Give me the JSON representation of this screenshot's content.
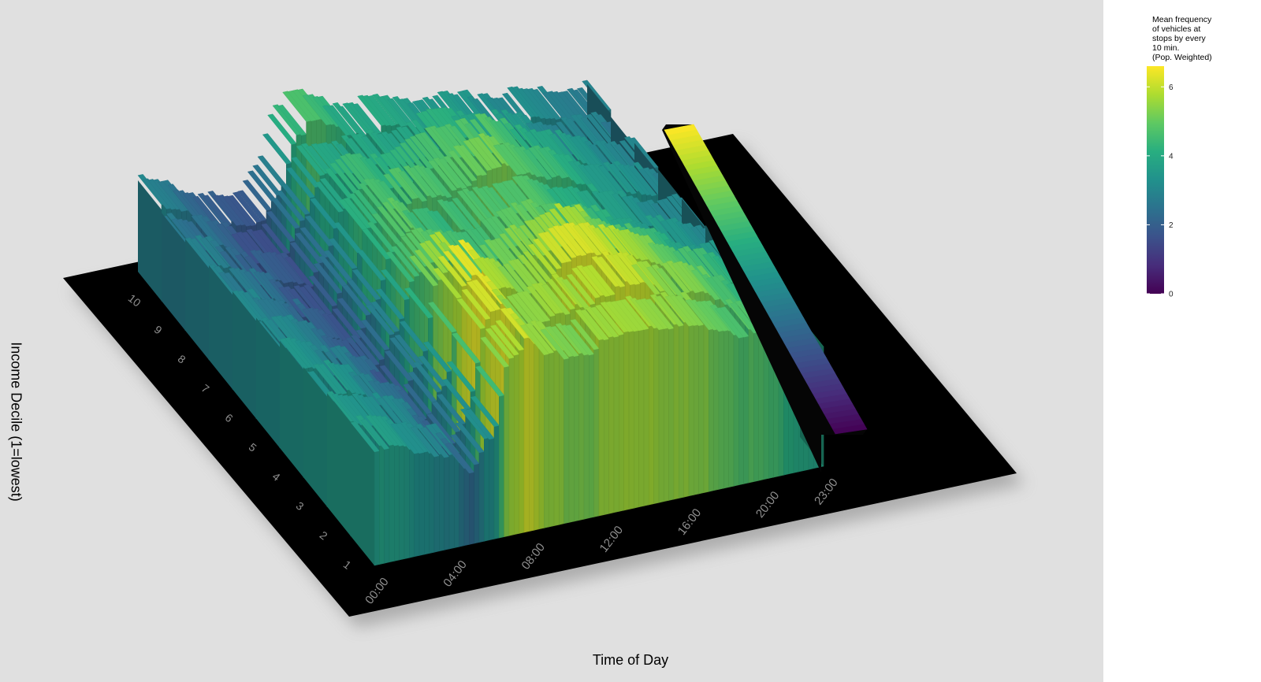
{
  "chart_data": {
    "type": "3d-surface",
    "xlabel": "Time of Day",
    "ylabel": "Income Decile (1=lowest)",
    "x_ticks": [
      "00:00",
      "04:00",
      "08:00",
      "12:00",
      "16:00",
      "20:00",
      "23:00"
    ],
    "y_ticks": [
      "1",
      "2",
      "3",
      "4",
      "5",
      "6",
      "7",
      "8",
      "9",
      "10"
    ],
    "x_hours": [
      0,
      1,
      2,
      3,
      4,
      5,
      6,
      7,
      8,
      9,
      10,
      11,
      12,
      13,
      14,
      15,
      16,
      17,
      18,
      19,
      20,
      21,
      22,
      23
    ],
    "z_range": [
      0,
      6.6
    ],
    "colorscale": [
      "#440154",
      "#472d7b",
      "#3b528b",
      "#2c728e",
      "#21918c",
      "#28ae80",
      "#5ec962",
      "#addc30",
      "#fde725"
    ],
    "series": [
      {
        "name": "1",
        "values": [
          3.6,
          3.6,
          3.4,
          3.2,
          2.9,
          2.2,
          3.3,
          5.8,
          6.0,
          5.4,
          5.3,
          5.3,
          5.5,
          5.6,
          5.7,
          5.6,
          5.4,
          5.3,
          5.1,
          4.8,
          4.6,
          4.3,
          4.0,
          3.8
        ]
      },
      {
        "name": "2",
        "values": [
          3.6,
          3.5,
          3.3,
          3.0,
          2.7,
          2.1,
          3.1,
          5.9,
          6.3,
          5.5,
          5.4,
          5.5,
          5.7,
          5.9,
          6.0,
          5.9,
          5.6,
          5.4,
          5.2,
          4.9,
          4.6,
          4.3,
          4.0,
          3.7
        ]
      },
      {
        "name": "3",
        "values": [
          3.5,
          3.4,
          3.2,
          2.9,
          2.5,
          2.0,
          3.0,
          6.2,
          6.5,
          5.6,
          5.4,
          5.6,
          5.9,
          6.1,
          6.2,
          6.0,
          5.6,
          5.3,
          5.0,
          4.7,
          4.4,
          4.1,
          3.8,
          3.6
        ]
      },
      {
        "name": "4",
        "values": [
          3.4,
          3.3,
          3.0,
          2.7,
          2.3,
          1.9,
          2.9,
          5.3,
          5.6,
          5.0,
          4.9,
          5.1,
          5.4,
          5.6,
          5.7,
          5.5,
          5.1,
          4.8,
          4.5,
          4.2,
          3.9,
          3.6,
          3.4,
          3.2
        ]
      },
      {
        "name": "5",
        "values": [
          3.2,
          3.1,
          2.8,
          2.5,
          2.1,
          1.8,
          2.8,
          4.6,
          5.0,
          4.6,
          4.5,
          4.6,
          4.8,
          4.9,
          5.0,
          4.8,
          4.5,
          4.3,
          4.0,
          3.8,
          3.6,
          3.4,
          3.2,
          3.0
        ]
      },
      {
        "name": "6",
        "values": [
          3.1,
          2.9,
          2.6,
          2.3,
          1.9,
          1.7,
          2.7,
          4.3,
          4.8,
          4.5,
          4.4,
          4.4,
          4.6,
          4.7,
          4.8,
          4.6,
          4.3,
          4.1,
          3.9,
          3.6,
          3.4,
          3.2,
          3.0,
          2.9
        ]
      },
      {
        "name": "7",
        "values": [
          3.0,
          2.8,
          2.5,
          2.2,
          1.8,
          1.7,
          2.6,
          4.2,
          4.7,
          4.6,
          4.6,
          4.7,
          4.9,
          5.0,
          5.1,
          4.9,
          4.6,
          4.3,
          4.0,
          3.7,
          3.5,
          3.3,
          3.1,
          2.9
        ]
      },
      {
        "name": "8",
        "values": [
          2.9,
          2.7,
          2.4,
          2.1,
          1.8,
          1.6,
          2.6,
          4.0,
          4.4,
          4.3,
          4.3,
          4.4,
          4.6,
          4.7,
          4.8,
          4.7,
          4.4,
          4.2,
          3.9,
          3.6,
          3.4,
          3.2,
          3.0,
          2.8
        ]
      },
      {
        "name": "9",
        "values": [
          2.8,
          2.6,
          2.3,
          2.0,
          1.7,
          1.6,
          2.5,
          3.8,
          4.0,
          3.9,
          3.8,
          3.8,
          3.9,
          4.0,
          4.1,
          4.0,
          3.8,
          3.6,
          3.4,
          3.2,
          3.0,
          2.9,
          2.8,
          2.7
        ]
      },
      {
        "name": "10",
        "values": [
          2.9,
          2.7,
          2.4,
          2.1,
          1.8,
          1.7,
          2.6,
          4.4,
          4.6,
          4.2,
          4.0,
          3.9,
          3.8,
          3.7,
          3.6,
          3.5,
          3.4,
          3.3,
          3.2,
          3.1,
          3.0,
          2.9,
          2.8,
          2.8
        ]
      }
    ],
    "legend": {
      "title": "Mean frequency\nof vehicles at\nstops by every\n10 min.\n(Pop. Weighted)",
      "ticks": [
        "0",
        "2",
        "4",
        "6"
      ],
      "tick_values": [
        0,
        2,
        4,
        6
      ],
      "placement": "right"
    }
  }
}
